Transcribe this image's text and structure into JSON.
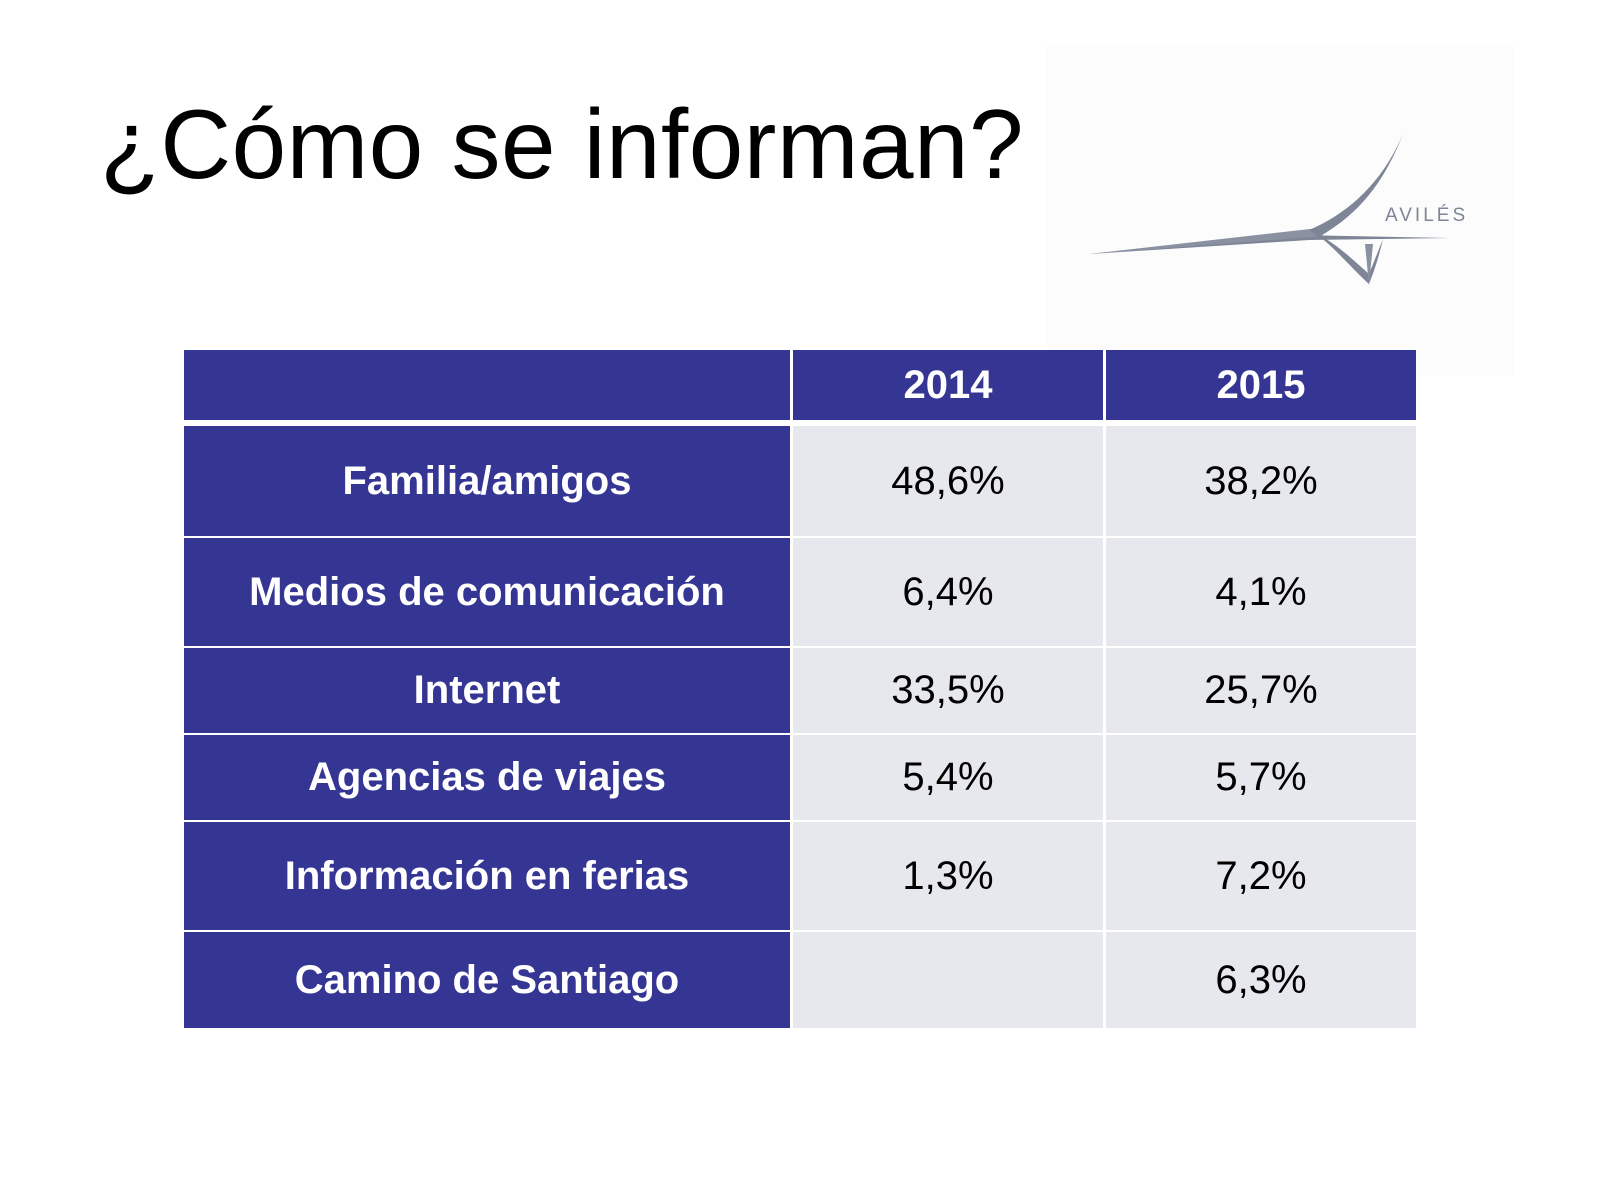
{
  "slide": {
    "title": "¿Cómo se informan?"
  },
  "logo": {
    "text": "AVILÉS",
    "color": "#7d8596"
  },
  "colors": {
    "header_bg": "#353594",
    "cell_bg": "#e7e8ee",
    "header_text": "#ffffff",
    "cell_text": "#000000"
  },
  "table": {
    "headers": [
      "",
      "2014",
      "2015"
    ],
    "rows": [
      {
        "label": "Familia/amigos",
        "y2014": "48,6%",
        "y2015": "38,2%"
      },
      {
        "label": "Medios de comunicación",
        "y2014": "6,4%",
        "y2015": "4,1%"
      },
      {
        "label": "Internet",
        "y2014": "33,5%",
        "y2015": "25,7%"
      },
      {
        "label": "Agencias de viajes",
        "y2014": "5,4%",
        "y2015": "5,7%"
      },
      {
        "label": "Información en ferias",
        "y2014": "1,3%",
        "y2015": "7,2%"
      },
      {
        "label": "Camino de Santiago",
        "y2014": "",
        "y2015": "6,3%"
      }
    ]
  }
}
